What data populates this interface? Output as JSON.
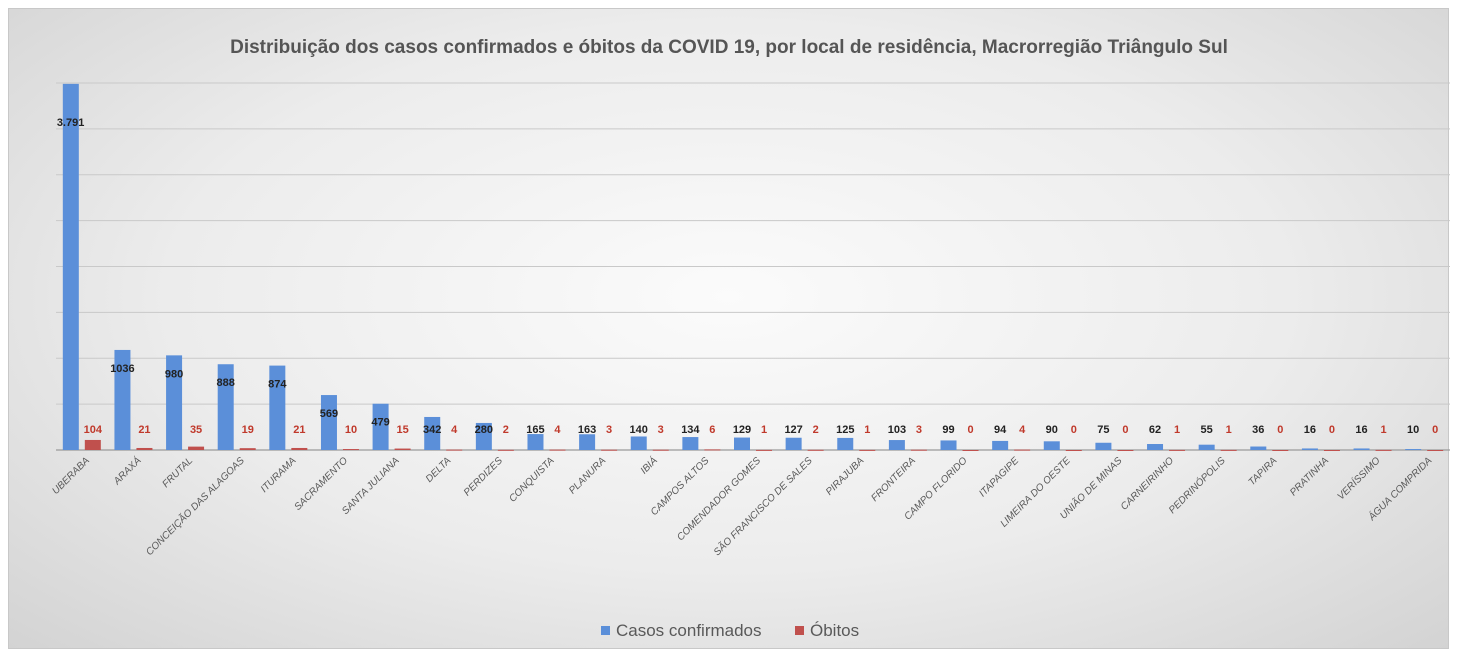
{
  "chart_data": {
    "type": "bar",
    "title": "Distribuição dos casos confirmados e óbitos da COVID 19, por local de residência, Macrorregião Triângulo Sul",
    "categories": [
      "UBERABA",
      "ARAXÁ",
      "FRUTAL",
      "CONCEIÇÃO DAS ALAGOAS",
      "ITURAMA",
      "SACRAMENTO",
      "SANTA JULIANA",
      "DELTA",
      "PERDIZES",
      "CONQUISTA",
      "PLANURA",
      "IBIÁ",
      "CAMPOS ALTOS",
      "COMENDADOR GOMES",
      "SÃO FRANCISCO DE SALES",
      "PIRAJUBA",
      "FRONTEIRA",
      "CAMPO FLORIDO",
      "ITAPAGIPE",
      "LIMEIRA DO OESTE",
      "UNIÃO DE MINAS",
      "CARNEIRINHO",
      "PEDRINÓPOLIS",
      "TAPIRA",
      "PRATINHA",
      "VERÍSSIMO",
      "ÁGUA COMPRIDA"
    ],
    "series": [
      {
        "name": "Casos confirmados",
        "color": "#5b8fd9",
        "values": [
          3791,
          1036,
          980,
          888,
          874,
          569,
          479,
          342,
          280,
          165,
          163,
          140,
          134,
          129,
          127,
          125,
          103,
          99,
          94,
          90,
          75,
          62,
          55,
          36,
          16,
          16,
          10
        ],
        "labels": [
          "3.791",
          "1036",
          "980",
          "888",
          "874",
          "569",
          "479",
          "342",
          "280",
          "165",
          "163",
          "140",
          "134",
          "129",
          "127",
          "125",
          "103",
          "99",
          "94",
          "90",
          "75",
          "62",
          "55",
          "36",
          "16",
          "16",
          "10"
        ]
      },
      {
        "name": "Óbitos",
        "color": "#c0504d",
        "values": [
          104,
          21,
          35,
          19,
          21,
          10,
          15,
          4,
          2,
          4,
          3,
          3,
          6,
          1,
          2,
          1,
          3,
          0,
          4,
          0,
          0,
          1,
          1,
          0,
          0,
          1,
          0
        ],
        "labels": [
          "104",
          "21",
          "35",
          "19",
          "21",
          "10",
          "15",
          "4",
          "2",
          "4",
          "3",
          "3",
          "6",
          "1",
          "2",
          "1",
          "3",
          "0",
          "4",
          "0",
          "0",
          "1",
          "1",
          "0",
          "0",
          "1",
          "0"
        ]
      }
    ],
    "ylim": [
      0,
      3800
    ],
    "grid": true,
    "legend": "bottom"
  }
}
